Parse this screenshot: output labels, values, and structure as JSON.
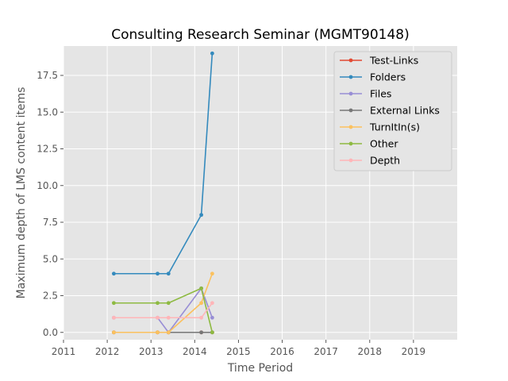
{
  "chart_data": {
    "type": "line",
    "title": "Consulting Research Seminar (MGMT90148)",
    "xlabel": "Time Period",
    "ylabel": "Maximum depth of LMS content items",
    "xlim": [
      2011,
      2020
    ],
    "ylim": [
      -0.5,
      19.5
    ],
    "x_ticks": [
      "2011",
      "2012",
      "2013",
      "2014",
      "2015",
      "2016",
      "2017",
      "2018",
      "2019"
    ],
    "y_ticks": [
      "0.0",
      "2.5",
      "5.0",
      "7.5",
      "10.0",
      "12.5",
      "15.0",
      "17.5"
    ],
    "grid": true,
    "legend_position": "top-right",
    "x": [
      2012.15,
      2013.15,
      2013.4,
      2014.15,
      2014.4
    ],
    "series": [
      {
        "name": "Test-Links",
        "color": "#e24a33",
        "values": [
          0,
          0,
          0,
          0,
          0
        ]
      },
      {
        "name": "Folders",
        "color": "#348abd",
        "values": [
          4,
          4,
          4,
          8,
          19
        ]
      },
      {
        "name": "Files",
        "color": "#988ed5",
        "values": [
          1,
          1,
          0,
          3,
          1
        ]
      },
      {
        "name": "External Links",
        "color": "#777777",
        "values": [
          0,
          0,
          0,
          0,
          0
        ]
      },
      {
        "name": "TurnItIn(s)",
        "color": "#fbc15e",
        "values": [
          0,
          0,
          0,
          2,
          4
        ]
      },
      {
        "name": "Other",
        "color": "#8eba42",
        "values": [
          2,
          2,
          2,
          3,
          0
        ]
      },
      {
        "name": "Depth",
        "color": "#ffb5b8",
        "values": [
          1,
          1,
          1,
          1,
          2
        ]
      }
    ]
  }
}
